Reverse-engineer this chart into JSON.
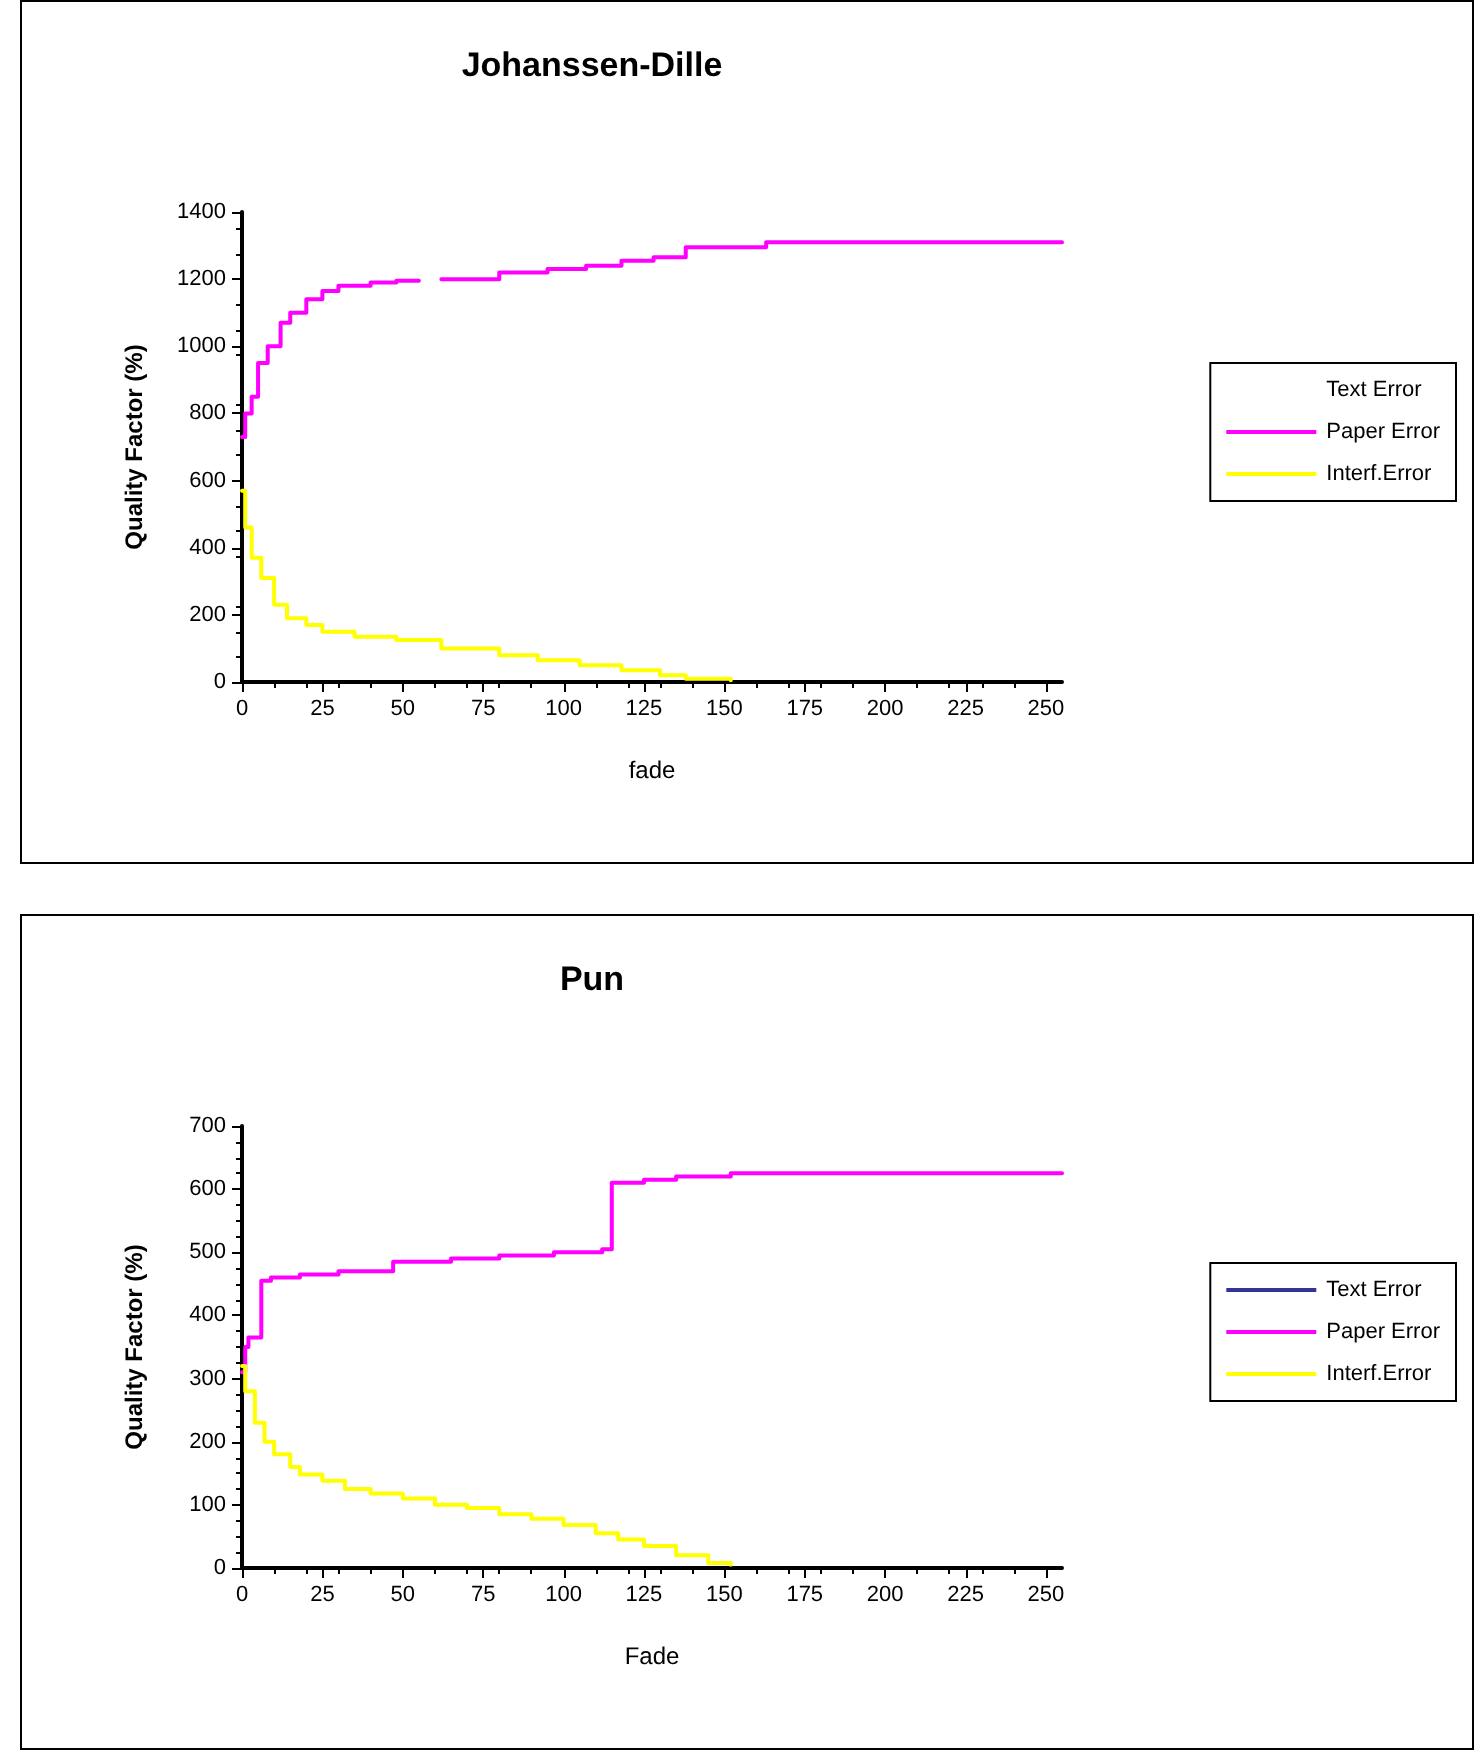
{
  "chart_data": [
    {
      "type": "step",
      "title": "Johanssen-Dille",
      "xlabel": "fade",
      "ylabel": "Quality Factor (%)",
      "xlim": [
        0,
        255
      ],
      "xticks": [
        0,
        25,
        50,
        75,
        100,
        125,
        150,
        175,
        200,
        225,
        250
      ],
      "ylim": [
        0,
        1400
      ],
      "yticks": [
        0,
        200,
        400,
        600,
        800,
        1000,
        1200,
        1400
      ],
      "grid": false,
      "legend": "right",
      "marker": "none",
      "line_style": "solid",
      "series": [
        {
          "name": "Text Error"
        },
        {
          "name": "Paper Error",
          "color": "#ff00ff",
          "x": [
            0,
            1,
            3,
            5,
            8,
            12,
            15,
            20,
            25,
            30,
            40,
            48,
            55,
            62,
            80,
            95,
            107,
            118,
            128,
            138,
            163,
            255
          ],
          "values": [
            730,
            800,
            850,
            950,
            1000,
            1070,
            1100,
            1140,
            1165,
            1180,
            1190,
            1195,
            null,
            1200,
            1220,
            1230,
            1240,
            1255,
            1265,
            1295,
            1310,
            1310
          ]
        },
        {
          "name": "Interf.Error",
          "color": "#ffff00",
          "x": [
            0,
            1,
            3,
            6,
            10,
            14,
            20,
            25,
            35,
            48,
            62,
            80,
            92,
            105,
            118,
            130,
            138,
            152
          ],
          "values": [
            570,
            460,
            370,
            310,
            230,
            190,
            170,
            150,
            135,
            125,
            100,
            80,
            65,
            50,
            35,
            20,
            10,
            5
          ]
        }
      ]
    },
    {
      "type": "step",
      "title": "Pun",
      "xlabel": "Fade",
      "ylabel": "Quality Factor (%)",
      "xlim": [
        0,
        255
      ],
      "xticks": [
        0,
        25,
        50,
        75,
        100,
        125,
        150,
        175,
        200,
        225,
        250
      ],
      "ylim": [
        0,
        700
      ],
      "yticks": [
        0,
        100,
        200,
        300,
        400,
        500,
        600,
        700
      ],
      "grid": false,
      "legend": "right",
      "marker": "none",
      "line_style": "solid",
      "series": [
        {
          "name": "Text Error",
          "color": "#333399"
        },
        {
          "name": "Paper Error",
          "color": "#ff00ff",
          "x": [
            0,
            1,
            2,
            6,
            9,
            18,
            30,
            47,
            65,
            80,
            97,
            112,
            115,
            125,
            135,
            152,
            255
          ],
          "values": [
            310,
            350,
            365,
            455,
            460,
            465,
            470,
            485,
            490,
            495,
            500,
            505,
            610,
            615,
            620,
            625,
            627
          ]
        },
        {
          "name": "Interf.Error",
          "color": "#ffff00",
          "x": [
            0,
            1,
            4,
            7,
            10,
            15,
            18,
            25,
            32,
            40,
            50,
            60,
            70,
            80,
            90,
            100,
            110,
            117,
            125,
            135,
            145,
            152
          ],
          "values": [
            320,
            280,
            230,
            200,
            180,
            160,
            148,
            138,
            125,
            118,
            110,
            100,
            95,
            85,
            78,
            68,
            55,
            45,
            35,
            20,
            8,
            5
          ]
        }
      ]
    }
  ]
}
